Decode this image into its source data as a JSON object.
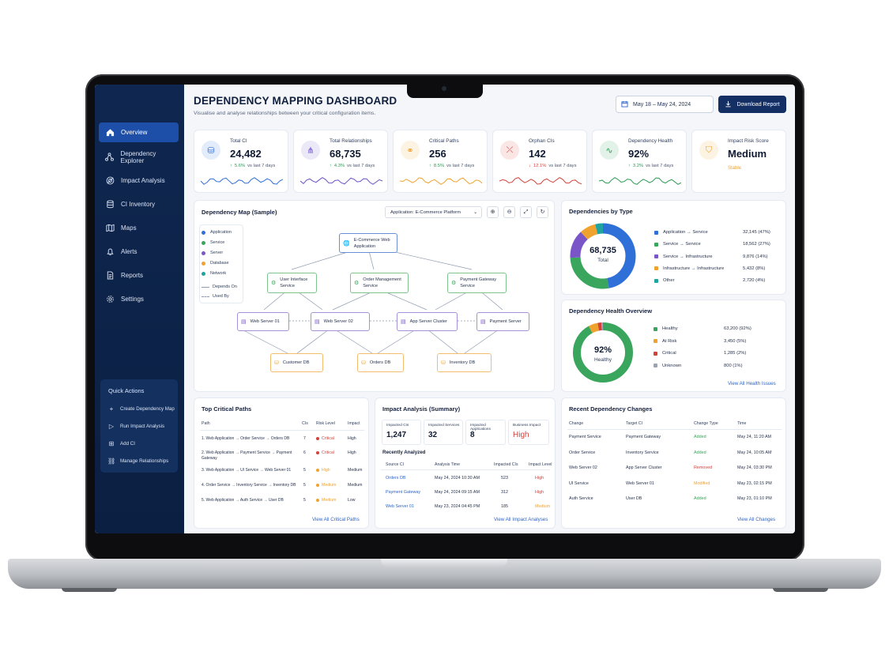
{
  "sidebar": {
    "items": [
      {
        "label": "Overview",
        "icon": "home-icon"
      },
      {
        "label": "Dependency Explorer",
        "icon": "network-icon"
      },
      {
        "label": "Impact Analysis",
        "icon": "target-icon"
      },
      {
        "label": "CI Inventory",
        "icon": "database-icon"
      },
      {
        "label": "Maps",
        "icon": "map-icon"
      },
      {
        "label": "Alerts",
        "icon": "bell-icon"
      },
      {
        "label": "Reports",
        "icon": "document-icon"
      },
      {
        "label": "Settings",
        "icon": "gear-icon"
      }
    ],
    "quick_actions_title": "Quick Actions",
    "quick_actions": [
      {
        "label": "Create Dependency Map",
        "icon": "plus-icon"
      },
      {
        "label": "Run Impact Analysis",
        "icon": "play-icon"
      },
      {
        "label": "Add CI",
        "icon": "add-box-icon"
      },
      {
        "label": "Manage Relationships",
        "icon": "link-icon"
      }
    ]
  },
  "header": {
    "title": "DEPENDENCY MAPPING DASHBOARD",
    "subtitle": "Visualise and analyse relationships between your critical configuration items.",
    "date_range": "May 18 – May 24, 2024",
    "download_label": "Download Report"
  },
  "kpis": [
    {
      "label": "Total CI",
      "value": "24,482",
      "arrow": "↑",
      "change": "5.6%",
      "period": "vs last 7 days",
      "trend": "up",
      "color": "#2f6fd8"
    },
    {
      "label": "Total Relationships",
      "value": "68,735",
      "arrow": "↑",
      "change": "4.3%",
      "period": "vs last 7 days",
      "trend": "up",
      "color": "#6b4fc7"
    },
    {
      "label": "Critical Paths",
      "value": "256",
      "arrow": "↑",
      "change": "8.5%",
      "period": "vs last 7 days",
      "trend": "up",
      "color": "#f0a22e"
    },
    {
      "label": "Orphan CIs",
      "value": "142",
      "arrow": "↓",
      "change": "12.1%",
      "period": "vs last 7 days",
      "trend": "down",
      "color": "#d2423b"
    },
    {
      "label": "Dependency Health",
      "value": "92%",
      "arrow": "↑",
      "change": "3.2%",
      "period": "vs last 7 days",
      "trend": "up",
      "color": "#2c9a53"
    },
    {
      "label": "Impact Risk Score",
      "value": "Medium",
      "status": "Stable",
      "color": "#f0a22e"
    }
  ],
  "map": {
    "title": "Dependency Map (Sample)",
    "application_select": "Application: E-Commerce Platform",
    "legend": [
      {
        "label": "Application",
        "color": "#2f6fd8"
      },
      {
        "label": "Service",
        "color": "#3aa55c"
      },
      {
        "label": "Server",
        "color": "#7a55c7"
      },
      {
        "label": "Database",
        "color": "#f0a22e"
      },
      {
        "label": "Network",
        "color": "#1fa4a0"
      }
    ],
    "line_legend": [
      "Depends On",
      "Used By"
    ],
    "nodes": {
      "app": "E-Commerce Web Application",
      "svc1": "User Interface Service",
      "svc2": "Order Management Service",
      "svc3": "Payment Gateway Service",
      "srv1": "Web Server 01",
      "srv2": "Web Server 02",
      "srv3": "App Server Cluster",
      "srv4": "Payment Server",
      "db1": "Customer DB",
      "db2": "Orders DB",
      "db3": "Inventory DB"
    }
  },
  "by_type": {
    "title": "Dependencies by Type",
    "total": "68,735",
    "total_label": "Total",
    "items": [
      {
        "label": "Application → Service",
        "value": "32,145 (47%)",
        "pct": 47,
        "color": "#2f6fd8"
      },
      {
        "label": "Service → Service",
        "value": "18,562 (27%)",
        "pct": 27,
        "color": "#3aa55c"
      },
      {
        "label": "Service → Infrastructure",
        "value": "9,876 (14%)",
        "pct": 14,
        "color": "#7a55c7"
      },
      {
        "label": "Infrastructure → Infrastructure",
        "value": "5,432 (8%)",
        "pct": 8,
        "color": "#f0a22e"
      },
      {
        "label": "Other",
        "value": "2,720 (4%)",
        "pct": 4,
        "color": "#1fa4a0"
      }
    ]
  },
  "health": {
    "title": "Dependency Health Overview",
    "value": "92%",
    "label": "Healthy",
    "items": [
      {
        "label": "Healthy",
        "value": "63,200 (92%)",
        "pct": 92,
        "color": "#3aa55c"
      },
      {
        "label": "At Risk",
        "value": "3,450 (5%)",
        "pct": 5,
        "color": "#f0a22e"
      },
      {
        "label": "Critical",
        "value": "1,285 (2%)",
        "pct": 2,
        "color": "#d2423b"
      },
      {
        "label": "Unknown",
        "value": "800 (1%)",
        "pct": 1,
        "color": "#9aa3b1"
      }
    ],
    "link": "View All Health Issues"
  },
  "critical_paths": {
    "title": "Top Critical Paths",
    "columns": [
      "Path",
      "CIs",
      "Risk Level",
      "Impact"
    ],
    "rows": [
      {
        "path": "1. Web Application → Order Service → Orders DB",
        "cis": "7",
        "risk": "Critical",
        "risk_color": "#d2423b",
        "impact": "High"
      },
      {
        "path": "2. Web Application → Payment Service → Payment Gateway",
        "cis": "6",
        "risk": "Critical",
        "risk_color": "#d2423b",
        "impact": "High"
      },
      {
        "path": "3. Web Application → UI Service → Web Server 01",
        "cis": "5",
        "risk": "High",
        "risk_color": "#f0a22e",
        "impact": "Medium"
      },
      {
        "path": "4. Order Service → Inventory Service → Inventory DB",
        "cis": "5",
        "risk": "Medium",
        "risk_color": "#f0a22e",
        "impact": "Medium"
      },
      {
        "path": "5. Web Application → Auth Service → User DB",
        "cis": "5",
        "risk": "Medium",
        "risk_color": "#f0a22e",
        "impact": "Low"
      }
    ],
    "link": "View All Critical Paths"
  },
  "impact": {
    "title": "Impact Analysis (Summary)",
    "stats": [
      {
        "label": "Impacted CIs",
        "value": "1,247"
      },
      {
        "label": "Impacted Services",
        "value": "32"
      },
      {
        "label": "Impacted Applications",
        "value": "8"
      },
      {
        "label": "Business Impact",
        "value": "High"
      }
    ],
    "recent_title": "Recently Analyzed",
    "columns": [
      "Source CI",
      "Analysis Time",
      "Impacted CIs",
      "Impact Level"
    ],
    "rows": [
      {
        "source": "Orders DB",
        "time": "May 24, 2024 10:30 AM",
        "cis": "523",
        "level": "High",
        "color": "#d2423b"
      },
      {
        "source": "Payment Gateway",
        "time": "May 24, 2024 09:15 AM",
        "cis": "312",
        "level": "High",
        "color": "#d2423b"
      },
      {
        "source": "Web Server 01",
        "time": "May 23, 2024 04:45 PM",
        "cis": "185",
        "level": "Medium",
        "color": "#f0a22e"
      }
    ],
    "link": "View All Impact Analyses"
  },
  "changes": {
    "title": "Recent Dependency Changes",
    "columns": [
      "Change",
      "Target CI",
      "Change Type",
      "Time"
    ],
    "rows": [
      {
        "change": "Payment Service",
        "target": "Payment Gateway",
        "type": "Added",
        "color": "#3aa55c",
        "time": "May 24, 11:20 AM"
      },
      {
        "change": "Order Service",
        "target": "Inventory Service",
        "type": "Added",
        "color": "#3aa55c",
        "time": "May 24, 10:05 AM"
      },
      {
        "change": "Web Server 02",
        "target": "App Server Cluster",
        "type": "Removed",
        "color": "#d2423b",
        "time": "May 24, 03:30 PM"
      },
      {
        "change": "UI Service",
        "target": "Web Server 01",
        "type": "Modified",
        "color": "#f0a22e",
        "time": "May 23, 02:15 PM"
      },
      {
        "change": "Auth Service",
        "target": "User DB",
        "type": "Added",
        "color": "#3aa55c",
        "time": "May 23, 01:10 PM"
      }
    ],
    "link": "View All Changes"
  }
}
